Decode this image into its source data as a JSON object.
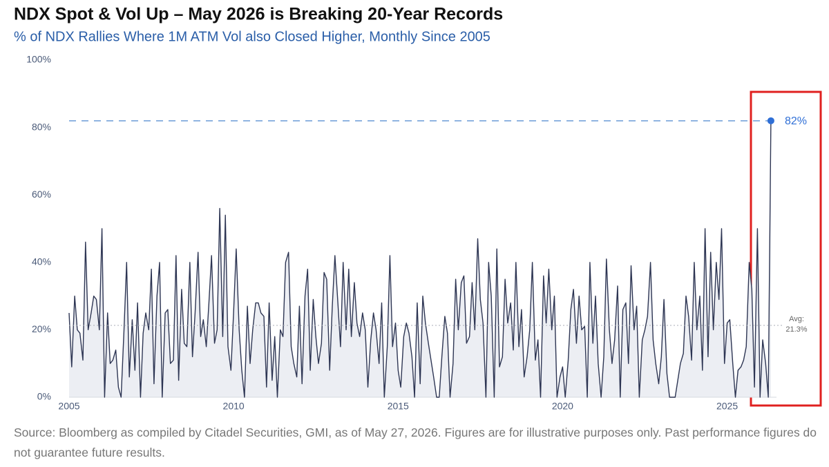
{
  "chart_data": {
    "type": "line",
    "title": "NDX Spot & Vol Up – May 2026 is Breaking 20-Year Records",
    "subtitle": "% of NDX Rallies Where 1M ATM Vol also Closed Higher, Monthly Since 2005",
    "source": "Source: Bloomberg as compiled by Citadel Securities, GMI, as of May 27, 2026. Figures are for illustrative purposes only. Past performance figures do not guarantee future results.",
    "x": [
      2005,
      2005.08,
      2005.17,
      2005.25,
      2005.33,
      2005.42,
      2005.5,
      2005.58,
      2005.67,
      2005.75,
      2005.83,
      2005.92,
      2006,
      2006.08,
      2006.17,
      2006.25,
      2006.33,
      2006.42,
      2006.5,
      2006.58,
      2006.67,
      2006.75,
      2006.83,
      2006.92,
      2007,
      2007.08,
      2007.17,
      2007.25,
      2007.33,
      2007.42,
      2007.5,
      2007.58,
      2007.67,
      2007.75,
      2007.83,
      2007.92,
      2008,
      2008.08,
      2008.17,
      2008.25,
      2008.33,
      2008.42,
      2008.5,
      2008.58,
      2008.67,
      2008.75,
      2008.83,
      2008.92,
      2009,
      2009.08,
      2009.17,
      2009.25,
      2009.33,
      2009.42,
      2009.5,
      2009.58,
      2009.67,
      2009.75,
      2009.83,
      2009.92,
      2010,
      2010.08,
      2010.17,
      2010.25,
      2010.33,
      2010.42,
      2010.5,
      2010.58,
      2010.67,
      2010.75,
      2010.83,
      2010.92,
      2011,
      2011.08,
      2011.17,
      2011.25,
      2011.33,
      2011.42,
      2011.5,
      2011.58,
      2011.67,
      2011.75,
      2011.83,
      2011.92,
      2012,
      2012.08,
      2012.17,
      2012.25,
      2012.33,
      2012.42,
      2012.5,
      2012.58,
      2012.67,
      2012.75,
      2012.83,
      2012.92,
      2013,
      2013.08,
      2013.17,
      2013.25,
      2013.33,
      2013.42,
      2013.5,
      2013.58,
      2013.67,
      2013.75,
      2013.83,
      2013.92,
      2014,
      2014.08,
      2014.17,
      2014.25,
      2014.33,
      2014.42,
      2014.5,
      2014.58,
      2014.67,
      2014.75,
      2014.83,
      2014.92,
      2015,
      2015.08,
      2015.17,
      2015.25,
      2015.33,
      2015.42,
      2015.5,
      2015.58,
      2015.67,
      2015.75,
      2015.83,
      2015.92,
      2016,
      2016.08,
      2016.17,
      2016.25,
      2016.33,
      2016.42,
      2016.5,
      2016.58,
      2016.67,
      2016.75,
      2016.83,
      2016.92,
      2017,
      2017.08,
      2017.17,
      2017.25,
      2017.33,
      2017.42,
      2017.5,
      2017.58,
      2017.67,
      2017.75,
      2017.83,
      2017.92,
      2018,
      2018.08,
      2018.17,
      2018.25,
      2018.33,
      2018.42,
      2018.5,
      2018.58,
      2018.67,
      2018.75,
      2018.83,
      2018.92,
      2019,
      2019.08,
      2019.17,
      2019.25,
      2019.33,
      2019.42,
      2019.5,
      2019.58,
      2019.67,
      2019.75,
      2019.83,
      2019.92,
      2020,
      2020.08,
      2020.17,
      2020.25,
      2020.33,
      2020.42,
      2020.5,
      2020.58,
      2020.67,
      2020.75,
      2020.83,
      2020.92,
      2021,
      2021.08,
      2021.17,
      2021.25,
      2021.33,
      2021.42,
      2021.5,
      2021.58,
      2021.67,
      2021.75,
      2021.83,
      2021.92,
      2022,
      2022.08,
      2022.17,
      2022.25,
      2022.33,
      2022.42,
      2022.5,
      2022.58,
      2022.67,
      2022.75,
      2022.83,
      2022.92,
      2023,
      2023.08,
      2023.17,
      2023.25,
      2023.33,
      2023.42,
      2023.5,
      2023.58,
      2023.67,
      2023.75,
      2023.83,
      2023.92,
      2024,
      2024.08,
      2024.17,
      2024.25,
      2024.33,
      2024.42,
      2024.5,
      2024.58,
      2024.67,
      2024.75,
      2024.83,
      2024.92,
      2025,
      2025.08,
      2025.17,
      2025.25,
      2025.33,
      2025.42,
      2025.5,
      2025.58,
      2025.67,
      2025.75,
      2025.83,
      2025.92,
      2026,
      2026.08,
      2026.17,
      2026.25,
      2026.33
    ],
    "values": [
      25,
      9,
      30,
      20,
      19,
      11,
      46,
      20,
      25,
      30,
      29,
      20,
      50,
      0,
      25,
      10,
      11,
      14,
      3,
      0,
      20,
      40,
      6,
      23,
      8,
      28,
      0,
      19,
      25,
      20,
      38,
      4,
      30,
      40,
      0,
      25,
      26,
      10,
      11,
      42,
      5,
      32,
      16,
      15,
      40,
      12,
      25,
      43,
      18,
      23,
      15,
      28,
      42,
      16,
      20,
      56,
      18,
      54,
      15,
      8,
      25,
      44,
      20,
      8,
      0,
      27,
      10,
      20,
      28,
      28,
      25,
      24,
      3,
      28,
      5,
      18,
      0,
      20,
      18,
      40,
      43,
      15,
      10,
      6,
      27,
      4,
      30,
      38,
      8,
      29,
      18,
      10,
      16,
      37,
      35,
      8,
      27,
      42,
      28,
      15,
      40,
      20,
      38,
      18,
      34,
      22,
      18,
      25,
      20,
      3,
      17,
      25,
      20,
      10,
      28,
      0,
      15,
      42,
      15,
      22,
      8,
      3,
      18,
      22,
      19,
      12,
      0,
      28,
      4,
      30,
      22,
      16,
      11,
      6,
      0,
      0,
      12,
      24,
      19,
      0,
      10,
      35,
      20,
      34,
      36,
      16,
      18,
      34,
      20,
      47,
      29,
      22,
      0,
      40,
      30,
      0,
      44,
      9,
      12,
      35,
      22,
      28,
      14,
      40,
      15,
      26,
      6,
      12,
      20,
      40,
      11,
      17,
      0,
      36,
      22,
      38,
      20,
      30,
      0,
      6,
      9,
      0,
      11,
      26,
      32,
      16,
      30,
      20,
      21,
      0,
      40,
      16,
      30,
      10,
      0,
      12,
      41,
      20,
      10,
      17,
      33,
      0,
      26,
      28,
      10,
      39,
      20,
      27,
      0,
      17,
      20,
      24,
      40,
      17,
      10,
      4,
      12,
      29,
      7,
      0,
      0,
      0,
      5,
      10,
      13,
      30,
      24,
      11,
      40,
      20,
      30,
      8,
      50,
      12,
      43,
      20,
      40,
      29,
      50,
      10,
      22,
      23,
      10,
      0,
      8,
      9,
      11,
      15,
      40,
      32,
      3,
      50,
      0,
      17,
      10,
      0,
      82
    ],
    "color": "#2d3553",
    "fill_color": "#eceef3",
    "xlim": [
      2005,
      2026.5
    ],
    "xticks": [
      2005,
      2010,
      2015,
      2020,
      2025
    ],
    "ylim": [
      0,
      100
    ],
    "yticks": [
      {
        "value": 0,
        "label": "0%"
      },
      {
        "value": 20,
        "label": "20%"
      },
      {
        "value": 40,
        "label": "40%"
      },
      {
        "value": 60,
        "label": "60%"
      },
      {
        "value": 80,
        "label": "80%"
      },
      {
        "value": 100,
        "label": "100%"
      }
    ],
    "highlight": {
      "value": 82,
      "label": "82%",
      "color": "#2f6fd6"
    },
    "average": {
      "value": 21.3,
      "label": "Avg:",
      "value_label": "21.3%"
    }
  }
}
